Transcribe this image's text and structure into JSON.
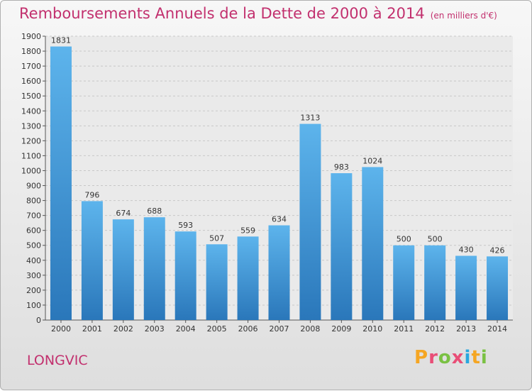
{
  "title": "Remboursements Annuels de la Dette de 2000 à 2014",
  "subtitle": "(en milliers d'€)",
  "town": "LONGVIC",
  "logo": {
    "letters": [
      "P",
      "r",
      "o",
      "x",
      "i",
      "t",
      "i"
    ],
    "colors": [
      "#f5a623",
      "#e94e77",
      "#7ac143",
      "#e94e77",
      "#2aa7df",
      "#f5a623",
      "#7ac143"
    ]
  },
  "colors": {
    "bar_top": "#5db4ec",
    "bar_bottom": "#2a77ba",
    "accent": "#c2306e"
  },
  "chart_data": {
    "type": "bar",
    "title": "Remboursements Annuels de la Dette de 2000 à 2014",
    "subtitle": "(en milliers d'€)",
    "xlabel": "",
    "ylabel": "",
    "categories": [
      "2000",
      "2001",
      "2002",
      "2003",
      "2004",
      "2005",
      "2006",
      "2007",
      "2008",
      "2009",
      "2010",
      "2011",
      "2012",
      "2013",
      "2014"
    ],
    "values": [
      1831,
      796,
      674,
      688,
      593,
      507,
      559,
      634,
      1313,
      983,
      1024,
      500,
      500,
      430,
      426
    ],
    "ylim": [
      0,
      1900
    ],
    "yticks": [
      0,
      100,
      200,
      300,
      400,
      500,
      600,
      700,
      800,
      900,
      1000,
      1100,
      1200,
      1300,
      1400,
      1500,
      1600,
      1700,
      1800,
      1900
    ],
    "grid": true,
    "legend": "none"
  }
}
